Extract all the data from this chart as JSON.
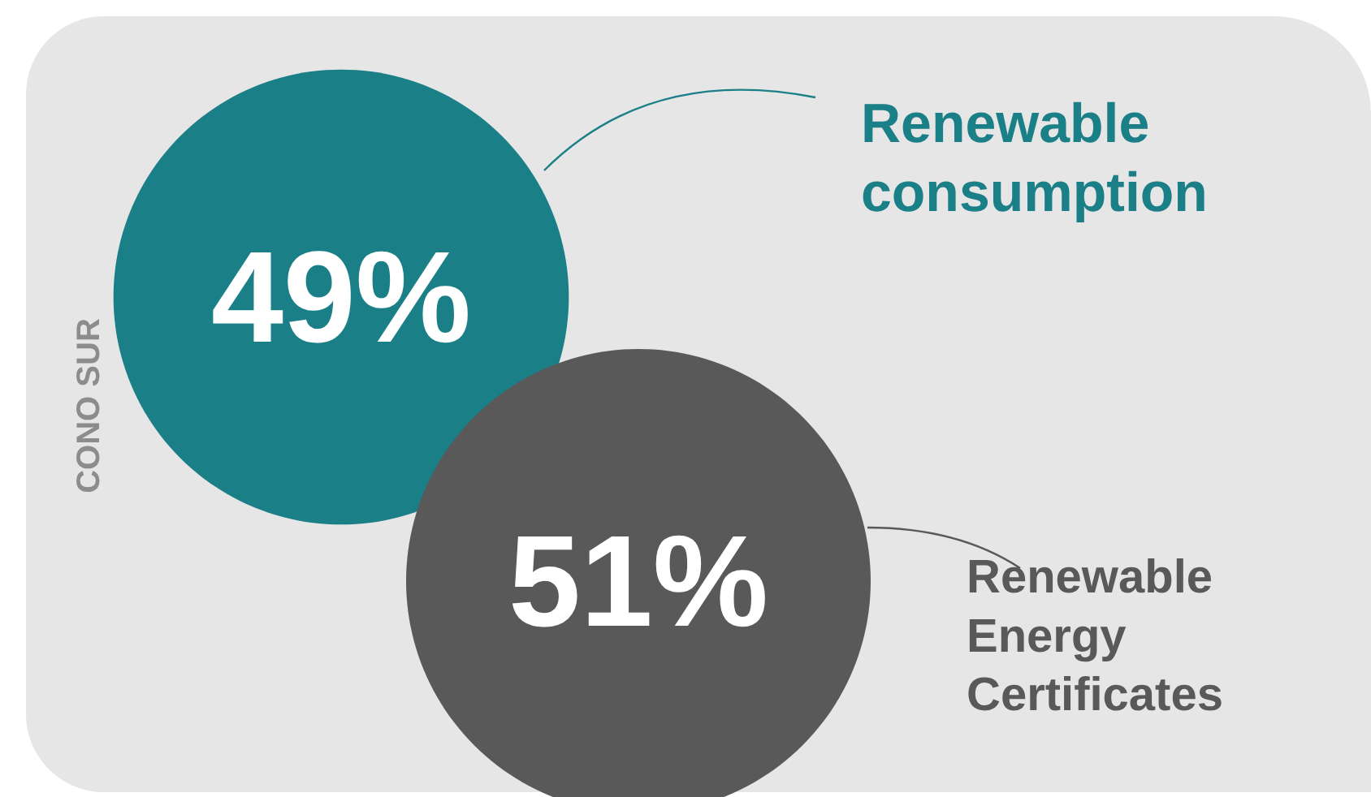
{
  "chart_data": {
    "type": "other",
    "title": "CONO SUR",
    "categories": [
      "Renewable consumption",
      "Renewable Energy Certificates"
    ],
    "values": [
      49,
      51
    ],
    "value_labels": [
      "49%",
      "51%"
    ],
    "colors": [
      "#1b7f88",
      "#595959"
    ]
  }
}
